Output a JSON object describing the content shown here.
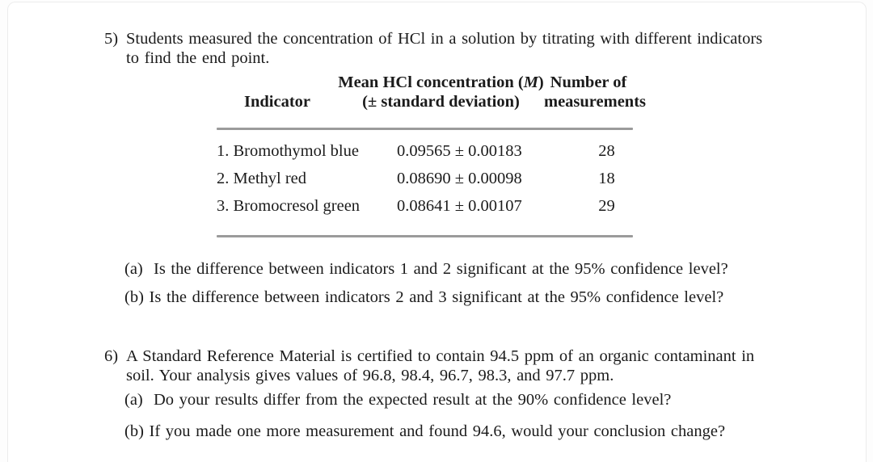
{
  "colors": {
    "text": "#1b1b1b",
    "table_rule": "#9b9b9b",
    "page_border": "#ececec",
    "page_background": "#ffffff"
  },
  "problems": [
    {
      "number": "5)",
      "lines": [
        "Students measured the concentration of HCl in a solution by titrating with different indicators",
        "to find the end point."
      ],
      "questions": [
        "(a)  Is the difference between indicators 1 and 2 significant at the 95% confidence level?",
        "(b) Is the difference between indicators 2 and 3 significant at the 95% confidence level?"
      ]
    },
    {
      "number": "6)",
      "lines": [
        "A Standard Reference Material is certified to contain 94.5 ppm of an organic contaminant in",
        "soil. Your analysis gives values of 96.8, 98.4, 96.7, 98.3, and 97.7 ppm."
      ],
      "questions": [
        "(a)  Do your results differ from the expected result at the 90% confidence level?",
        "(b) If you made one more measurement and found 94.6, would your conclusion change?"
      ]
    }
  ],
  "table": {
    "header": {
      "col1": "Indicator",
      "col2_line1_pre": "Mean HCl concentration (",
      "col2_line1_m": "M",
      "col2_line1_post": ")",
      "col2_line2": "(± standard deviation)",
      "col3_line1": "Number of",
      "col3_line2": "measurements"
    },
    "rows": [
      {
        "indicator": "1. Bromothymol blue",
        "value": "0.09565 ± 0.00183",
        "n": "28"
      },
      {
        "indicator": "2. Methyl red",
        "value": "0.08690 ± 0.00098",
        "n": "18"
      },
      {
        "indicator": "3. Bromocresol green",
        "value": "0.08641 ± 0.00107",
        "n": "29"
      }
    ]
  }
}
